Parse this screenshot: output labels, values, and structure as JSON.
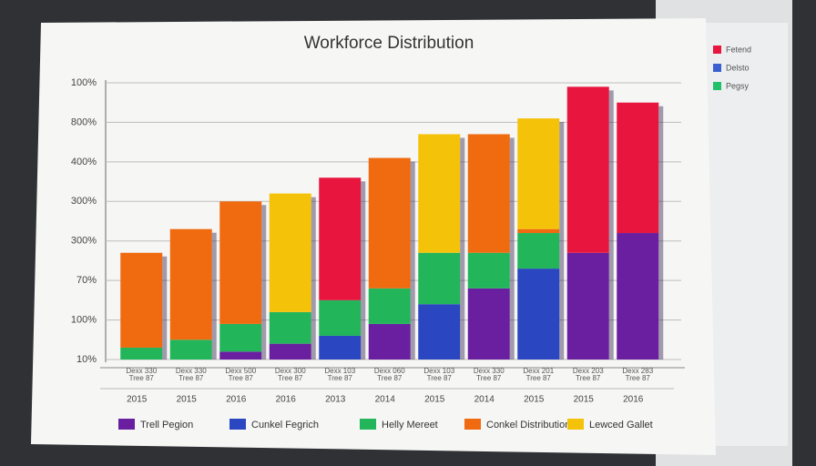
{
  "chart_data": {
    "type": "stacked_bar",
    "title": "Workforce Distribution",
    "categories": [
      "2015",
      "2015",
      "2016",
      "2016",
      "2013",
      "2014",
      "2015",
      "2014",
      "2015",
      "2015",
      "2016"
    ],
    "bar_labels": [
      [
        "Dexx 330",
        "Tree 87"
      ],
      [
        "Dexx 330",
        "Tree 87"
      ],
      [
        "Dexx 500",
        "Tree 87"
      ],
      [
        "Dexx 300",
        "Tree 87"
      ],
      [
        "Dexx 103",
        "Tree 87"
      ],
      [
        "Dexx 060",
        "Tree 87"
      ],
      [
        "Dexx 103",
        "Tree 87"
      ],
      [
        "Dexx 330",
        "Tree 87"
      ],
      [
        "Dexx 201",
        "Tree 87"
      ],
      [
        "Dexx 203",
        "Tree 87"
      ],
      [
        "Dexx 283",
        "Tree 87"
      ]
    ],
    "ylim": [
      0,
      7
    ],
    "yticks": [
      {
        "value": 0,
        "label": "10%"
      },
      {
        "value": 1,
        "label": "100%"
      },
      {
        "value": 2,
        "label": "70%"
      },
      {
        "value": 3,
        "label": "300%"
      },
      {
        "value": 4,
        "label": "300%"
      },
      {
        "value": 5,
        "label": "400%"
      },
      {
        "value": 6,
        "label": "800%"
      },
      {
        "value": 7,
        "label": "100%"
      }
    ],
    "grid": true,
    "series": [
      {
        "name": "Trell Pegion",
        "color": "#6a1fa0",
        "values": [
          null,
          null,
          0.2,
          0.4,
          null,
          0.9,
          null,
          1.8,
          null,
          2.7,
          3.2
        ]
      },
      {
        "name": "Cunkel Fegrich",
        "color": "#2a46c0",
        "values": [
          null,
          null,
          null,
          null,
          0.6,
          null,
          1.4,
          null,
          2.3,
          null,
          null
        ]
      },
      {
        "name": "Helly Mereet",
        "color": "#22b55a",
        "values": [
          0.3,
          0.5,
          0.7,
          0.8,
          0.9,
          0.9,
          1.3,
          0.9,
          0.9,
          null,
          null
        ]
      },
      {
        "name": "Conkel Distribution",
        "color": "#f06a10",
        "values": [
          2.4,
          2.8,
          3.1,
          null,
          null,
          3.3,
          null,
          3.0,
          0.1,
          null,
          null
        ]
      },
      {
        "name": "Lewced Gallet",
        "color": "#f5c20a",
        "values": [
          null,
          null,
          null,
          3.0,
          null,
          null,
          3.0,
          null,
          2.8,
          null,
          null
        ]
      },
      {
        "name": "Fetend",
        "color": "#e8163f",
        "values": [
          null,
          null,
          null,
          null,
          3.1,
          null,
          null,
          null,
          null,
          4.2,
          3.3
        ]
      }
    ],
    "side_legend": [
      {
        "name": "Delsto",
        "color": "#3a5fd0"
      },
      {
        "name": "Pegsy",
        "color": "#22c06a"
      }
    ]
  }
}
